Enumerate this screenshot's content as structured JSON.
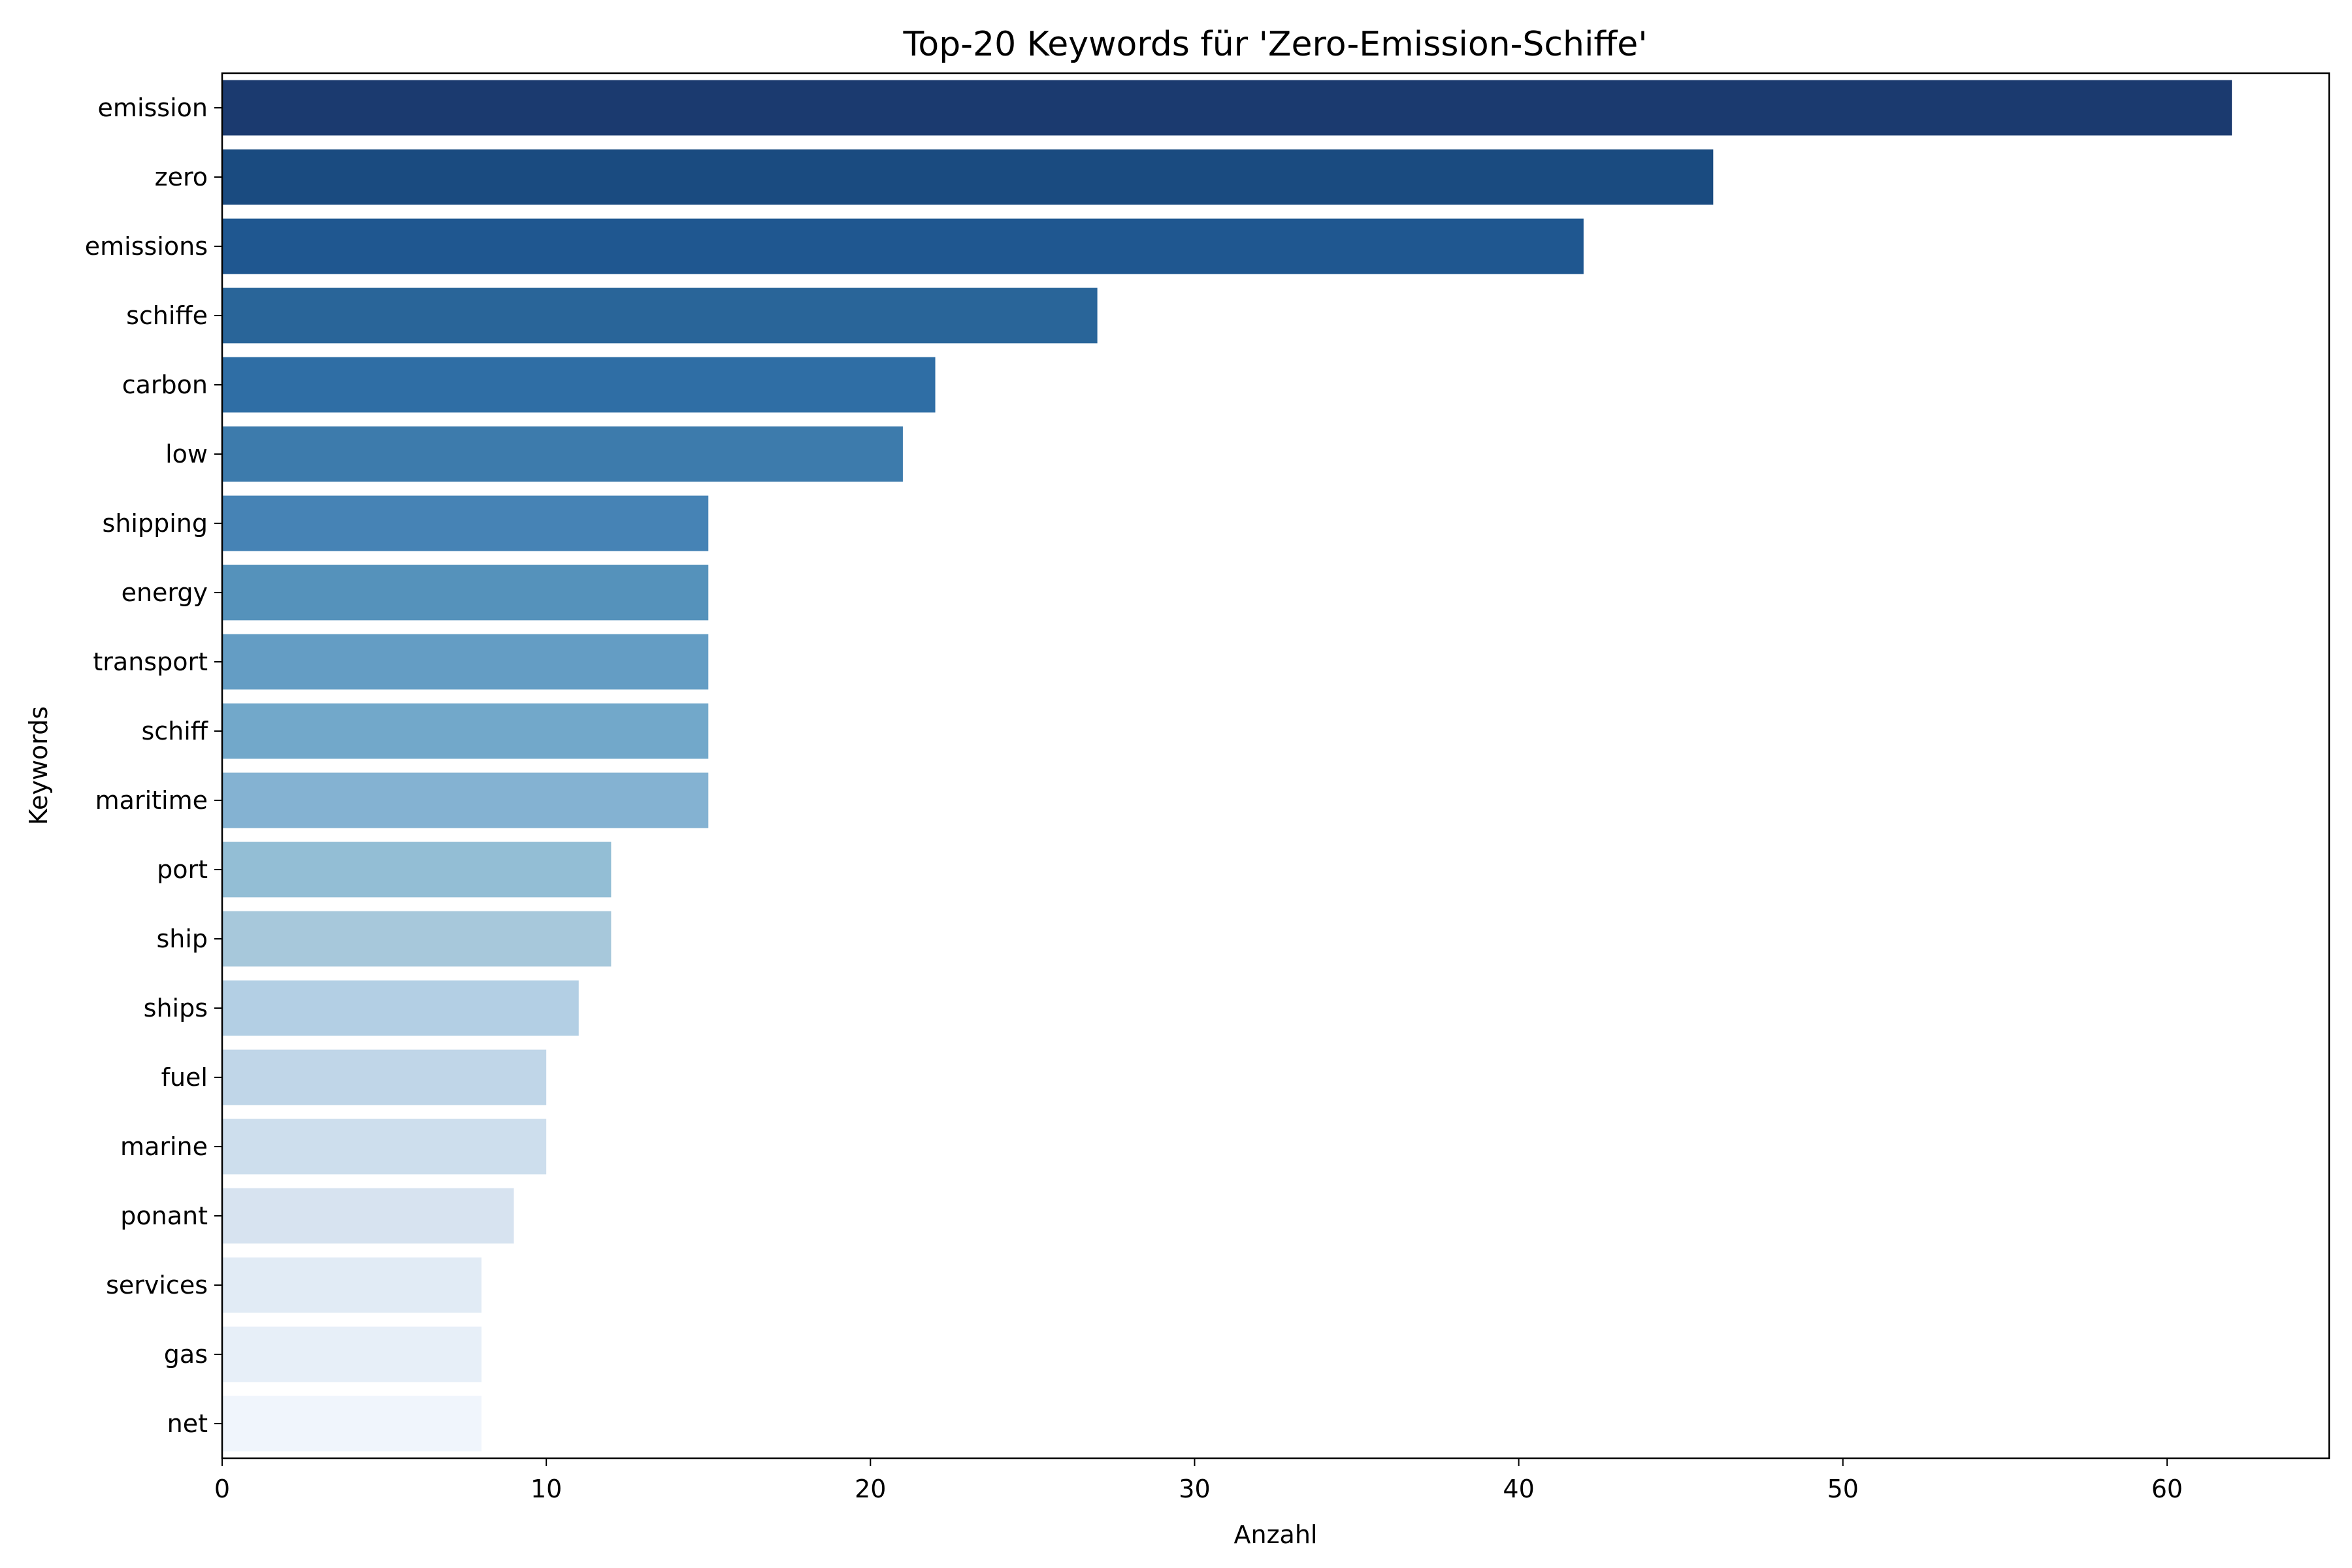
{
  "chart_data": {
    "type": "bar",
    "orientation": "horizontal",
    "title": "Top-20 Keywords für 'Zero-Emission-Schiffe'",
    "xlabel": "Anzahl",
    "ylabel": "Keywords",
    "xlim": [
      0,
      65
    ],
    "xticks": [
      0,
      10,
      20,
      30,
      40,
      50,
      60
    ],
    "grid": false,
    "categories": [
      "emission",
      "zero",
      "emissions",
      "schiffe",
      "carbon",
      "low",
      "shipping",
      "energy",
      "transport",
      "schiff",
      "maritime",
      "port",
      "ship",
      "ships",
      "fuel",
      "marine",
      "ponant",
      "services",
      "gas",
      "net"
    ],
    "values": [
      62,
      46,
      42,
      27,
      22,
      21,
      15,
      15,
      15,
      15,
      15,
      12,
      12,
      11,
      10,
      10,
      9,
      8,
      8,
      8
    ],
    "colors": [
      "#1b3a6f",
      "#1a4b80",
      "#1f5790",
      "#296599",
      "#2f6ea5",
      "#3d7bac",
      "#4683b5",
      "#5592bb",
      "#649dc4",
      "#72a8ca",
      "#84b2d2",
      "#93bed5",
      "#a7c8db",
      "#b3cfe4",
      "#c0d6e8",
      "#cddeed",
      "#d7e3f0",
      "#e1ebf5",
      "#e7eff8",
      "#f0f5fc"
    ]
  }
}
